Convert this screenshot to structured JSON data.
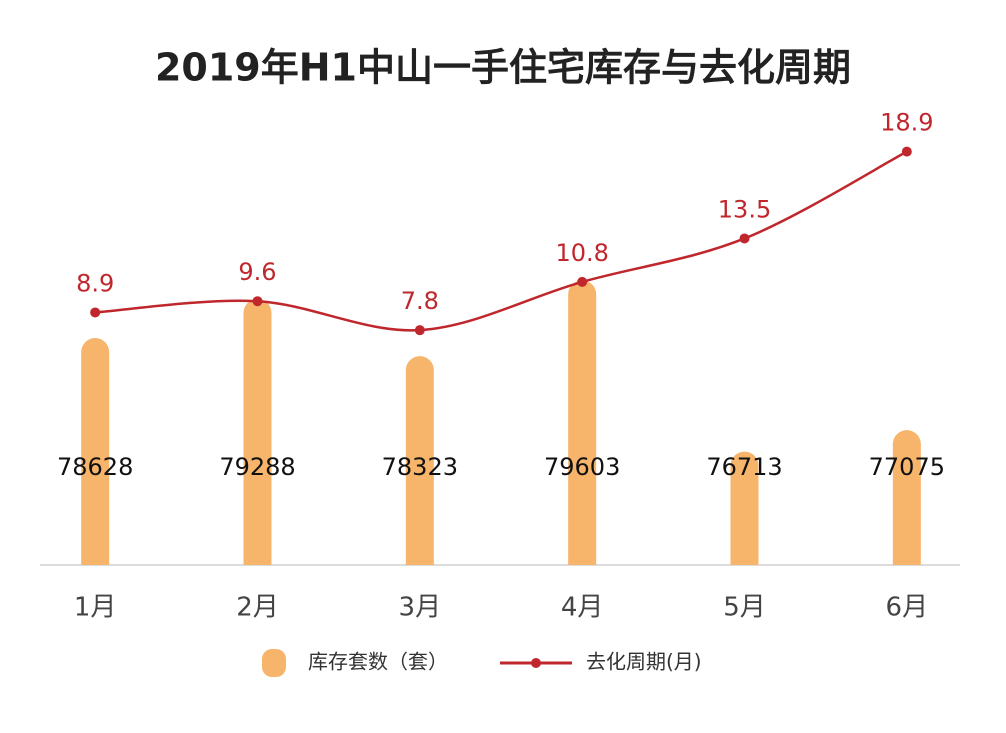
{
  "chart_data": {
    "type": "bar-line",
    "title": "2019年H1中山一手住宅库存与去化周期",
    "categories": [
      "1月",
      "2月",
      "3月",
      "4月",
      "5月",
      "6月"
    ],
    "series": [
      {
        "name": "库存套数（套）",
        "type": "bar",
        "color": "#f7b46b",
        "values": [
          78628,
          79288,
          78323,
          79603,
          76713,
          77075
        ]
      },
      {
        "name": "去化周期(月)",
        "type": "line",
        "axis": "y2",
        "color": "#c0272d",
        "values": [
          8.9,
          9.6,
          7.8,
          10.8,
          13.5,
          18.9
        ]
      }
    ],
    "ylim": [
      74800,
      81800
    ],
    "y2lim": [
      -6.8,
      19
    ]
  }
}
